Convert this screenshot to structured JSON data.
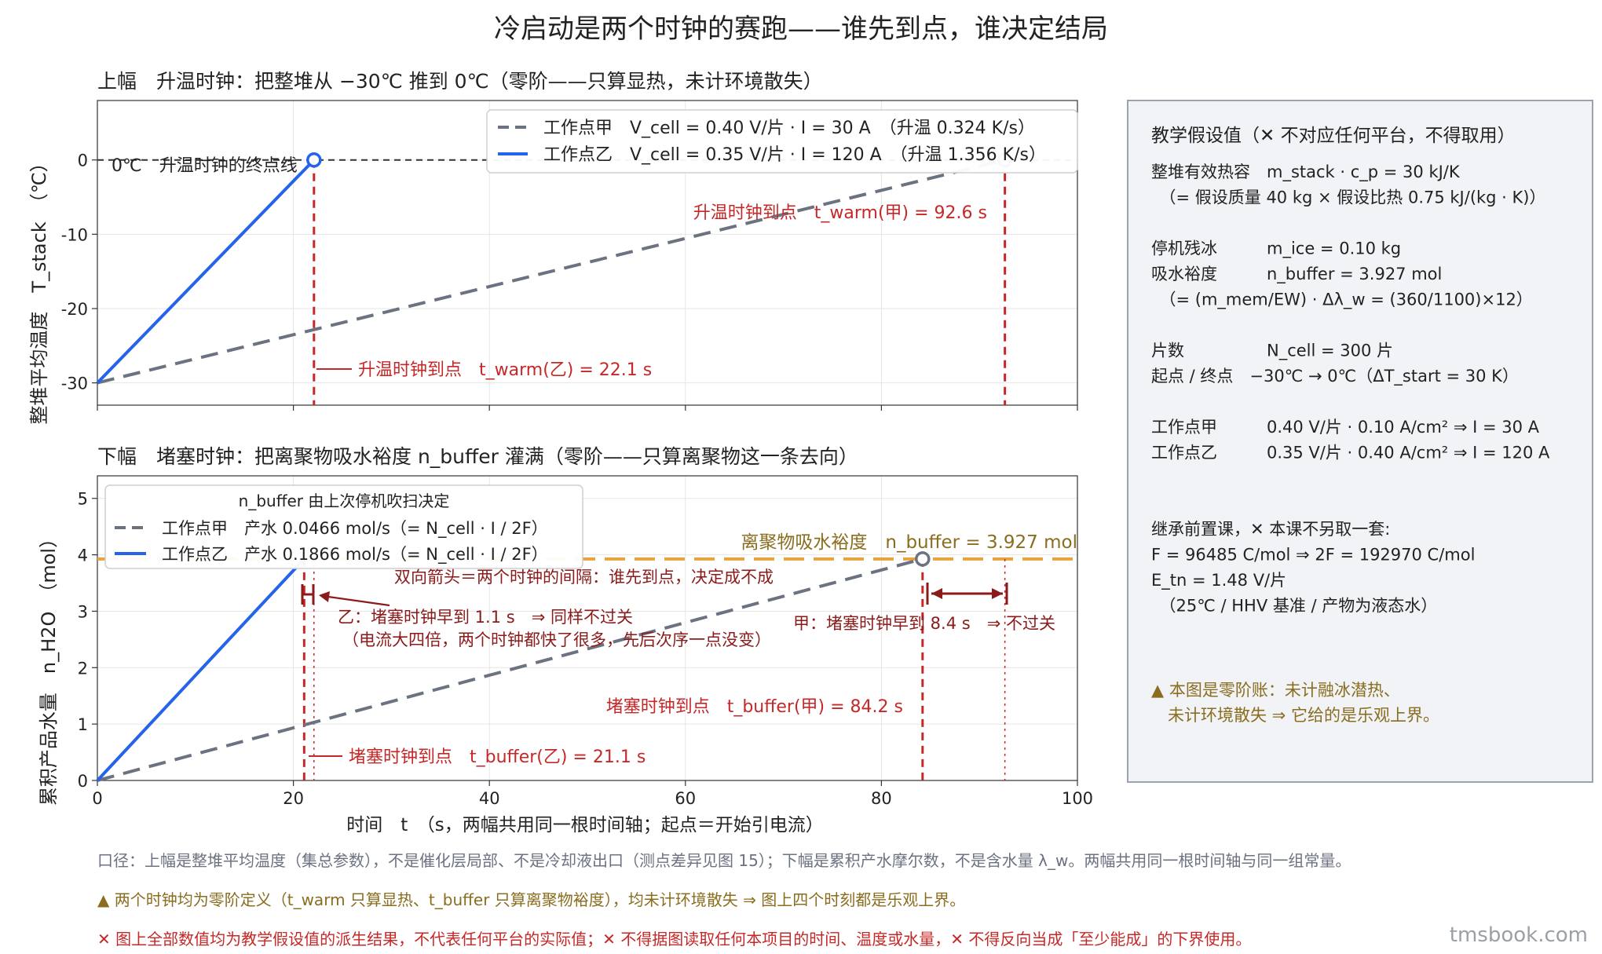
{
  "page_title": "冷启动是两个时钟的赛跑——谁先到点，谁决定结局",
  "colors": {
    "series_a": "#6b7280",
    "series_b": "#2563eb",
    "accent_red": "#c62828",
    "dark_red": "#8b1a1a",
    "buffer_orange": "#e8a33c",
    "buffer_text": "#8a6d1f"
  },
  "chart_data": [
    {
      "type": "line",
      "title": "上幅　升温时钟：把整堆从 −30℃ 推到 0℃（零阶——只算显热，未计环境散失）",
      "ylabel": "整堆平均温度　T_stack　（℃）",
      "xlim": [
        0,
        100
      ],
      "ylim": [
        -33,
        8
      ],
      "yticks": [
        0,
        -10,
        -20,
        -30
      ],
      "grid": true,
      "legend_position": "top-right",
      "series": [
        {
          "name": "工作点甲　V_cell = 0.40 V/片 · I = 30 A　（升温 0.324 K/s）",
          "x": [
            0,
            92.6
          ],
          "y": [
            -30,
            0
          ],
          "style": "dashed"
        },
        {
          "name": "工作点乙　V_cell = 0.35 V/片 · I = 120 A　（升温 1.356 K/s）",
          "x": [
            0,
            22.1
          ],
          "y": [
            -30,
            0
          ],
          "style": "solid"
        }
      ],
      "threshold": {
        "y": 0,
        "label": "0℃　升温时钟的终点线"
      },
      "annotations": [
        {
          "label": "升温时钟到点　t_warm(甲) = 92.6 s",
          "x": 92.6
        },
        {
          "label": "升温时钟到点　t_warm(乙) = 22.1 s",
          "x": 22.1
        }
      ]
    },
    {
      "type": "line",
      "title": "下幅　堵塞时钟：把离聚物吸水裕度 n_buffer 灌满（零阶——只算离聚物这一条去向）",
      "ylabel": "累积产品水量　n_H2O　（mol）",
      "xlabel": "时间　t　（s，两幅共用同一根时间轴；起点＝开始引电流）",
      "xlim": [
        0,
        100
      ],
      "ylim": [
        0,
        5.4
      ],
      "xticks": [
        0,
        20,
        40,
        60,
        80,
        100
      ],
      "yticks": [
        0,
        1,
        2,
        3,
        4,
        5
      ],
      "grid": true,
      "legend_position": "top-left",
      "legend_title": "n_buffer 由上次停机吹扫决定",
      "series": [
        {
          "name": "工作点甲　产水 0.0466 mol/s（= N_cell · I / 2F）",
          "x": [
            0,
            84.2
          ],
          "y": [
            0,
            3.927
          ],
          "style": "dashed"
        },
        {
          "name": "工作点乙　产水 0.1866 mol/s（= N_cell · I / 2F）",
          "x": [
            0,
            21.1
          ],
          "y": [
            0,
            3.927
          ],
          "style": "solid"
        }
      ],
      "threshold": {
        "y": 3.927,
        "label": "离聚物吸水裕度　n_buffer = 3.927 mol"
      },
      "annotations": [
        {
          "label": "双向箭头＝两个时钟的间隔：谁先到点，决定成不成"
        },
        {
          "label": "乙：堵塞时钟早到 1.1 s　⇒ 同样不过关"
        },
        {
          "label": "（电流大四倍，两个时钟都快了很多，先后次序一点没变）"
        },
        {
          "label": "甲：堵塞时钟早到 8.4 s　⇒ 不过关"
        },
        {
          "label": "堵塞时钟到点　t_buffer(甲) = 84.2 s",
          "x": 84.2
        },
        {
          "label": "堵塞时钟到点　t_buffer(乙) = 21.1 s",
          "x": 21.1
        }
      ]
    }
  ],
  "side_panel": {
    "title": "教学假设值（✕ 不对应任何平台，不得取用）",
    "lines": [
      "整堆有效热容　m_stack · c_p = 30 kJ/K",
      "　（= 假设质量 40 kg × 假设比热 0.75 kJ/(kg · K)）",
      "",
      "停机残冰　　　m_ice = 0.10 kg",
      "吸水裕度　　　n_buffer = 3.927 mol",
      "　（= (m_mem/EW) · Δλ_w = (360/1100)×12）",
      "",
      "片数　　　　　N_cell = 300 片",
      "起点 / 终点　−30℃ → 0℃（ΔT_start = 30 K）",
      "",
      "工作点甲　　　0.40 V/片 · 0.10 A/cm² ⇒ I = 30 A",
      "工作点乙　　　0.35 V/片 · 0.40 A/cm² ⇒ I = 120 A",
      "",
      "",
      "继承前置课，✕ 本课不另取一套:",
      "F = 96485 C/mol ⇒ 2F = 192970 C/mol",
      "E_tn = 1.48 V/片",
      "　（25℃ / HHV 基准 / 产物为液态水）"
    ],
    "warning": [
      "▲ 本图是零阶账：未计融冰潜热、",
      "　未计环境散失 ⇒ 它给的是乐观上界。"
    ]
  },
  "footer": {
    "note1": "口径：上幅是整堆平均温度（集总参数），不是催化层局部、不是冷却液出口（测点差异见图 15）；下幅是累积产水摩尔数，不是含水量 λ_w。两幅共用同一根时间轴与同一组常量。",
    "note2": "▲ 两个时钟均为零阶定义（t_warm 只算显热、t_buffer 只算离聚物裕度），均未计环境散失 ⇒ 图上四个时刻都是乐观上界。",
    "note3": "✕ 图上全部数值均为教学假设值的派生结果，不代表任何平台的实际值；✕ 不得据图读取任何本项目的时间、温度或水量，✕ 不得反向当成「至少能成」的下界使用。",
    "watermark": "tmsbook.com"
  }
}
